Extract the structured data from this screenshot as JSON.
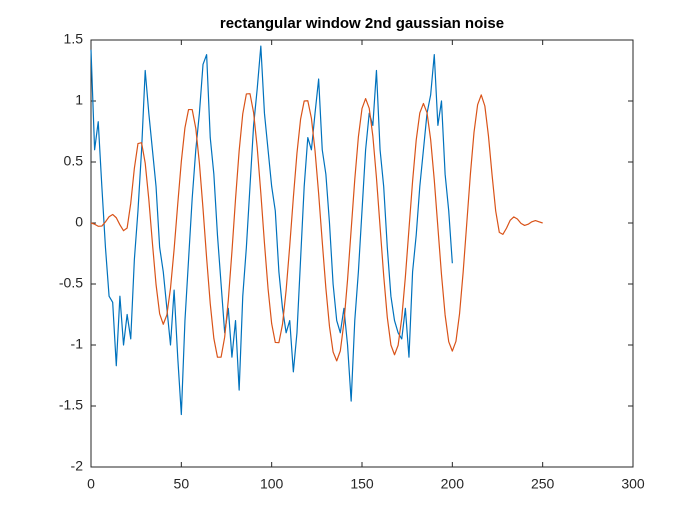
{
  "chart_data": {
    "type": "line",
    "title": "rectangular window 2nd gaussian noise",
    "xlim": [
      0,
      300
    ],
    "xticks": [
      0,
      50,
      100,
      150,
      200,
      250,
      300
    ],
    "ylim": [
      -2,
      1.5
    ],
    "yticks": [
      -2,
      -1.5,
      -1,
      -0.5,
      0,
      0.5,
      1,
      1.5
    ],
    "series": [
      {
        "color": "#0072BD",
        "x": [
          0,
          2,
          4,
          6,
          8,
          10,
          12,
          14,
          16,
          18,
          20,
          22,
          24,
          26,
          28,
          30,
          32,
          34,
          36,
          38,
          40,
          42,
          44,
          46,
          48,
          50,
          52,
          54,
          56,
          58,
          60,
          62,
          64,
          66,
          68,
          70,
          72,
          74,
          76,
          78,
          80,
          82,
          84,
          86,
          88,
          90,
          92,
          94,
          96,
          98,
          100,
          102,
          104,
          106,
          108,
          110,
          112,
          114,
          116,
          118,
          120,
          122,
          124,
          126,
          128,
          130,
          132,
          134,
          136,
          138,
          140,
          142,
          144,
          146,
          148,
          150,
          152,
          154,
          156,
          158,
          160,
          162,
          164,
          166,
          168,
          170,
          172,
          174,
          176,
          178,
          180,
          182,
          184,
          186,
          188,
          190,
          192,
          194,
          196,
          198,
          200
        ],
        "values": [
          1.42,
          0.6,
          0.83,
          0.3,
          -0.2,
          -0.6,
          -0.65,
          -1.17,
          -0.6,
          -1.0,
          -0.75,
          -0.95,
          -0.3,
          0.1,
          0.6,
          1.25,
          0.9,
          0.6,
          0.3,
          -0.2,
          -0.4,
          -0.7,
          -1.0,
          -0.55,
          -1.1,
          -1.57,
          -0.8,
          -0.3,
          0.2,
          0.6,
          0.9,
          1.3,
          1.38,
          0.7,
          0.4,
          -0.1,
          -0.5,
          -0.9,
          -0.7,
          -1.1,
          -0.8,
          -1.37,
          -0.6,
          -0.2,
          0.3,
          0.8,
          1.1,
          1.45,
          0.9,
          0.6,
          0.3,
          0.1,
          -0.4,
          -0.7,
          -0.9,
          -0.8,
          -1.22,
          -0.9,
          -0.3,
          0.3,
          0.7,
          0.6,
          0.9,
          1.18,
          0.6,
          0.4,
          0.0,
          -0.5,
          -0.8,
          -0.9,
          -0.7,
          -1.0,
          -1.46,
          -0.8,
          -0.4,
          0.1,
          0.6,
          0.9,
          0.8,
          1.25,
          0.6,
          0.3,
          -0.2,
          -0.6,
          -0.8,
          -0.9,
          -0.95,
          -0.7,
          -1.1,
          -0.4,
          -0.1,
          0.3,
          0.6,
          0.9,
          1.05,
          1.38,
          0.8,
          1.0,
          0.4,
          0.1,
          -0.33
        ]
      },
      {
        "color": "#D95319",
        "x": [
          0,
          2,
          4,
          6,
          8,
          10,
          12,
          14,
          16,
          18,
          20,
          22,
          24,
          26,
          28,
          30,
          32,
          34,
          36,
          38,
          40,
          42,
          44,
          46,
          48,
          50,
          52,
          54,
          56,
          58,
          60,
          62,
          64,
          66,
          68,
          70,
          72,
          74,
          76,
          78,
          80,
          82,
          84,
          86,
          88,
          90,
          92,
          94,
          96,
          98,
          100,
          102,
          104,
          106,
          108,
          110,
          112,
          114,
          116,
          118,
          120,
          122,
          124,
          126,
          128,
          130,
          132,
          134,
          136,
          138,
          140,
          142,
          144,
          146,
          148,
          150,
          152,
          154,
          156,
          158,
          160,
          162,
          164,
          166,
          168,
          170,
          172,
          174,
          176,
          178,
          180,
          182,
          184,
          186,
          188,
          190,
          192,
          194,
          196,
          198,
          200,
          202,
          204,
          206,
          208,
          210,
          212,
          214,
          216,
          218,
          220,
          222,
          224,
          226,
          228,
          230,
          232,
          234,
          236,
          238,
          240,
          242,
          244,
          246,
          248,
          250
        ],
        "values": [
          0,
          -0.01,
          -0.027,
          -0.025,
          0.009,
          0.051,
          0.07,
          0.043,
          -0.015,
          -0.063,
          -0.041,
          0.162,
          0.448,
          0.651,
          0.658,
          0.491,
          0.194,
          -0.166,
          -0.504,
          -0.744,
          -0.83,
          -0.753,
          -0.536,
          -0.216,
          0.153,
          0.505,
          0.781,
          0.93,
          0.93,
          0.776,
          0.49,
          0.118,
          -0.288,
          -0.66,
          -0.946,
          -1.1,
          -1.1,
          -0.935,
          -0.632,
          -0.236,
          0.196,
          0.592,
          0.895,
          1.058,
          1.06,
          0.905,
          0.618,
          0.244,
          -0.164,
          -0.538,
          -0.825,
          -0.979,
          -0.981,
          -0.83,
          -0.552,
          -0.188,
          0.208,
          0.572,
          0.85,
          1.0,
          1.002,
          0.859,
          0.592,
          0.24,
          -0.154,
          -0.534,
          -0.848,
          -1.057,
          -1.13,
          -1.048,
          -0.816,
          -0.466,
          -0.055,
          0.356,
          0.706,
          0.938,
          1.02,
          0.94,
          0.713,
          0.371,
          -0.03,
          -0.431,
          -0.773,
          -1.0,
          -1.08,
          -1.002,
          -0.779,
          -0.443,
          -0.05,
          0.343,
          0.679,
          0.902,
          0.98,
          0.903,
          0.684,
          0.353,
          -0.035,
          -0.423,
          -0.754,
          -0.973,
          -1.05,
          -0.97,
          -0.743,
          -0.401,
          0,
          0.401,
          0.743,
          0.97,
          1.05,
          0.959,
          0.713,
          0.393,
          0.099,
          -0.077,
          -0.093,
          -0.042,
          0.022,
          0.05,
          0.033,
          -0.003,
          -0.02,
          -0.01,
          0.01,
          0.02,
          0.01,
          0
        ]
      }
    ]
  }
}
